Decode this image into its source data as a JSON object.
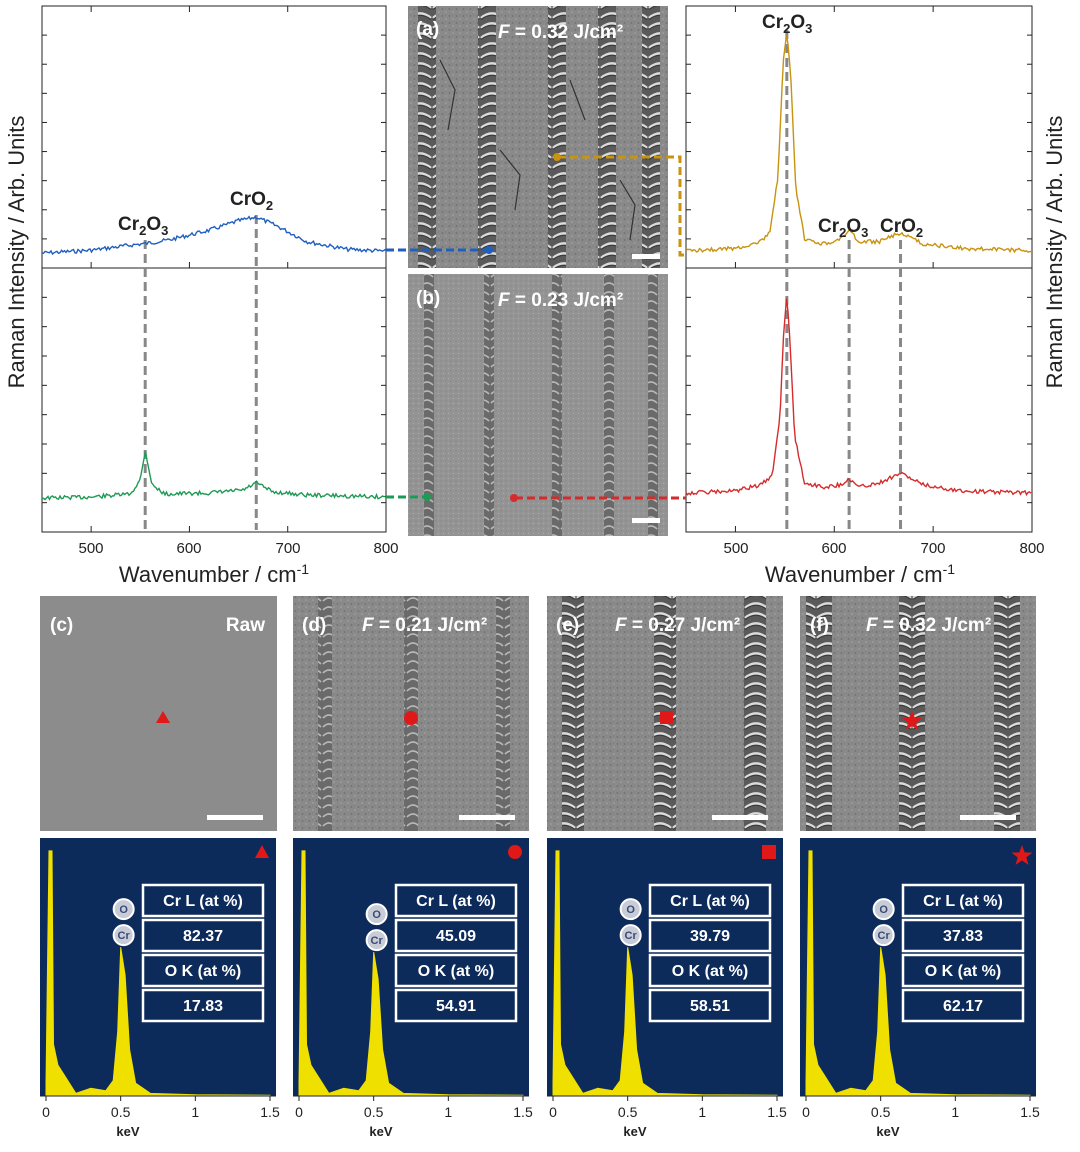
{
  "colors": {
    "blue": "#1f5fbf",
    "green": "#1e9a55",
    "gold": "#c9920f",
    "red": "#d62b2b",
    "edsBg": "#0c2a5a",
    "edsYellow": "#f0e000",
    "marker": "#e01818",
    "refLine": "#888888"
  },
  "labels": {
    "a": "(a)",
    "b": "(b)",
    "c": "(c)",
    "d": "(d)",
    "e": "(e)",
    "f": "(f)",
    "fSym": "F",
    "aF": "= 0.32 J/cm²",
    "bF": "= 0.23 J/cm²",
    "dF": "= 0.21 J/cm²",
    "eF": "= 0.27 J/cm²",
    "fF": "= 0.32 J/cm²",
    "raw": "Raw"
  },
  "chart_data": [
    {
      "id": "raman-left",
      "type": "line",
      "xlabel": "Wavenumber / cm-1",
      "ylabel": "Raman Intensity / Arb. Units",
      "xlim": [
        450,
        800
      ],
      "xticks": [
        "500",
        "600",
        "700",
        "800"
      ],
      "reference_lines": [
        555,
        668
      ],
      "series": [
        {
          "name": "F = 0.32 J/cm2 (a)",
          "color": "blue",
          "x": [
            450,
            500,
            530,
            545,
            555,
            580,
            620,
            650,
            668,
            690,
            720,
            760,
            800
          ],
          "y": [
            0.02,
            0.05,
            0.09,
            0.11,
            0.12,
            0.16,
            0.26,
            0.36,
            0.4,
            0.3,
            0.14,
            0.06,
            0.04
          ]
        },
        {
          "name": "F = 0.23 J/cm2 (b)",
          "color": "green",
          "x": [
            450,
            500,
            540,
            550,
            555,
            562,
            575,
            620,
            655,
            668,
            685,
            720,
            800
          ],
          "y": [
            0.02,
            0.03,
            0.06,
            0.2,
            0.5,
            0.15,
            0.06,
            0.07,
            0.1,
            0.17,
            0.08,
            0.05,
            0.03
          ]
        }
      ],
      "annotations": [
        "Cr2O3",
        "CrO2"
      ]
    },
    {
      "id": "raman-right",
      "type": "line",
      "xlabel": "Wavenumber / cm-1",
      "ylabel": "Raman Intensity / Arb. Units",
      "xlim": [
        450,
        800
      ],
      "xticks": [
        "500",
        "600",
        "700",
        "800"
      ],
      "reference_lines": [
        552,
        615,
        667
      ],
      "series": [
        {
          "name": "F = 0.32 J/cm2 (a)",
          "color": "gold",
          "x": [
            450,
            500,
            525,
            535,
            543,
            548,
            552,
            556,
            561,
            570,
            590,
            605,
            615,
            625,
            645,
            667,
            690,
            730,
            800
          ],
          "y": [
            0.02,
            0.03,
            0.06,
            0.1,
            0.35,
            0.85,
            1.0,
            0.8,
            0.3,
            0.07,
            0.05,
            0.07,
            0.11,
            0.06,
            0.06,
            0.1,
            0.05,
            0.03,
            0.02
          ]
        },
        {
          "name": "F = 0.23 J/cm2 (b)",
          "color": "red",
          "x": [
            450,
            500,
            525,
            537,
            545,
            549,
            552,
            555,
            560,
            570,
            590,
            605,
            615,
            625,
            645,
            667,
            690,
            730,
            800
          ],
          "y": [
            0.02,
            0.03,
            0.06,
            0.1,
            0.4,
            0.85,
            1.0,
            0.8,
            0.3,
            0.07,
            0.05,
            0.06,
            0.09,
            0.05,
            0.07,
            0.12,
            0.06,
            0.03,
            0.02
          ]
        }
      ],
      "annotations": [
        "Cr2O3",
        "Cr2O3",
        "CrO2"
      ]
    },
    {
      "id": "eds-spectra",
      "type": "bar",
      "xlabel": "keV",
      "xlim": [
        0,
        1.5
      ],
      "xticks": [
        "0",
        "0.5",
        "1",
        "1.5"
      ],
      "element_labels": {
        "o": "O",
        "cr": "Cr"
      },
      "table_headers": {
        "cr": "Cr L (at %)",
        "o": "O K (at %)"
      },
      "series": [
        {
          "name": "Raw",
          "marker": "triangle",
          "cr": "82.37",
          "o": "17.83"
        },
        {
          "name": "F = 0.21 J/cm2",
          "marker": "circle",
          "cr": "45.09",
          "o": "54.91"
        },
        {
          "name": "F = 0.27 J/cm2",
          "marker": "square",
          "cr": "39.79",
          "o": "58.51"
        },
        {
          "name": "F = 0.32 J/cm2",
          "marker": "star",
          "cr": "37.83",
          "o": "62.17"
        }
      ]
    }
  ]
}
